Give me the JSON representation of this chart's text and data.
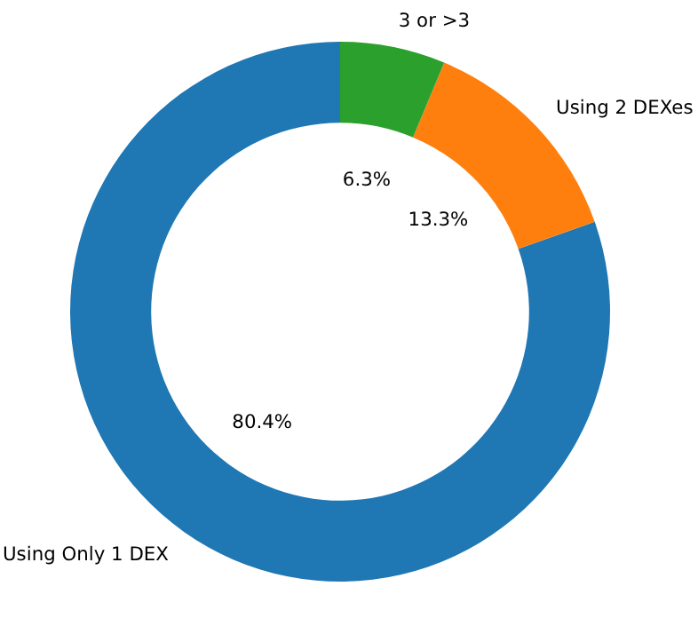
{
  "chart_data": {
    "type": "donut",
    "categories": [
      "Using Only 1 DEX",
      "Using 2 DEXes",
      "3 or >3"
    ],
    "values": [
      80.4,
      13.3,
      6.3
    ],
    "colors": [
      "#1f77b4",
      "#ff7f0e",
      "#2ca02c"
    ],
    "value_labels": [
      "80.4%",
      "13.3%",
      "6.3%"
    ]
  }
}
